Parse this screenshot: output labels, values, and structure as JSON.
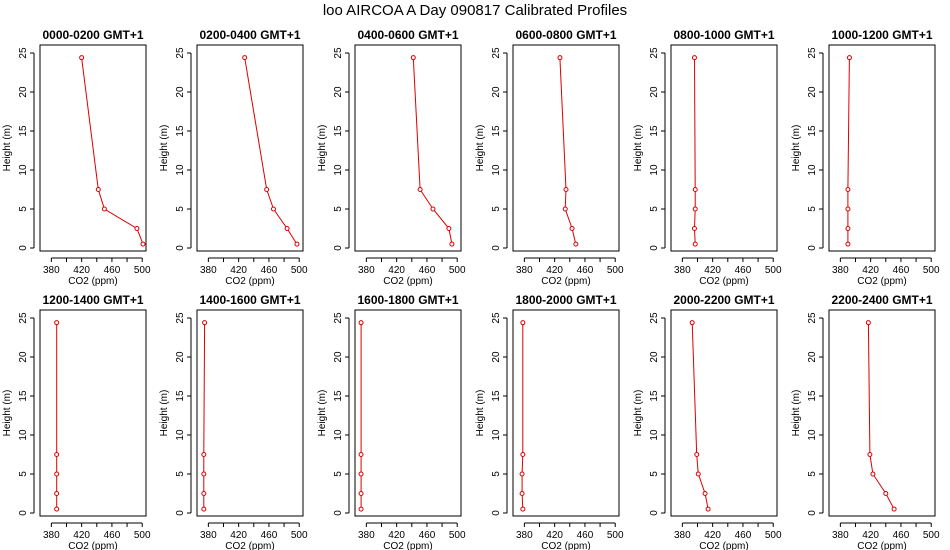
{
  "title": "loo AIRCOA A  Day 090817  Calibrated Profiles",
  "colors": {
    "series": "#dd0000",
    "axis": "#000000",
    "background": "#ffffff"
  },
  "chart_data": [
    {
      "type": "line",
      "title": "0000-0200 GMT+1",
      "xlabel": "CO2 (ppm)",
      "ylabel": "Height (m)",
      "xlim": [
        365,
        505
      ],
      "ylim": [
        0,
        25
      ],
      "xticks": [
        380,
        420,
        460,
        500
      ],
      "xminor": [
        400,
        440,
        480
      ],
      "yticks": [
        0,
        5,
        10,
        15,
        20,
        25
      ],
      "points": [
        {
          "x": 501,
          "y": 0.5
        },
        {
          "x": 493,
          "y": 2.5
        },
        {
          "x": 450,
          "y": 5
        },
        {
          "x": 442,
          "y": 7.5
        },
        {
          "x": 420,
          "y": 24.4
        }
      ]
    },
    {
      "type": "line",
      "title": "0200-0400 GMT+1",
      "xlabel": "CO2 (ppm)",
      "ylabel": "Height (m)",
      "xlim": [
        365,
        505
      ],
      "ylim": [
        0,
        25
      ],
      "xticks": [
        380,
        420,
        460,
        500
      ],
      "xminor": [
        400,
        440,
        480
      ],
      "yticks": [
        0,
        5,
        10,
        15,
        20,
        25
      ],
      "points": [
        {
          "x": 497,
          "y": 0.5
        },
        {
          "x": 484,
          "y": 2.5
        },
        {
          "x": 466,
          "y": 5
        },
        {
          "x": 457,
          "y": 7.5
        },
        {
          "x": 428,
          "y": 24.4
        }
      ]
    },
    {
      "type": "line",
      "title": "0400-0600 GMT+1",
      "xlabel": "CO2 (ppm)",
      "ylabel": "Height (m)",
      "xlim": [
        365,
        505
      ],
      "ylim": [
        0,
        25
      ],
      "xticks": [
        380,
        420,
        460,
        500
      ],
      "xminor": [
        400,
        440,
        480
      ],
      "yticks": [
        0,
        5,
        10,
        15,
        20,
        25
      ],
      "points": [
        {
          "x": 493,
          "y": 0.5
        },
        {
          "x": 489,
          "y": 2.5
        },
        {
          "x": 468,
          "y": 5
        },
        {
          "x": 451,
          "y": 7.5
        },
        {
          "x": 442,
          "y": 24.4
        }
      ]
    },
    {
      "type": "line",
      "title": "0600-0800 GMT+1",
      "xlabel": "CO2 (ppm)",
      "ylabel": "Height (m)",
      "xlim": [
        365,
        505
      ],
      "ylim": [
        0,
        25
      ],
      "xticks": [
        380,
        420,
        460,
        500
      ],
      "xminor": [
        400,
        440,
        480
      ],
      "yticks": [
        0,
        5,
        10,
        15,
        20,
        25
      ],
      "points": [
        {
          "x": 448,
          "y": 0.5
        },
        {
          "x": 443,
          "y": 2.5
        },
        {
          "x": 434,
          "y": 5
        },
        {
          "x": 435,
          "y": 7.5
        },
        {
          "x": 427,
          "y": 24.4
        }
      ]
    },
    {
      "type": "line",
      "title": "0800-1000 GMT+1",
      "xlabel": "CO2 (ppm)",
      "ylabel": "Height (m)",
      "xlim": [
        365,
        505
      ],
      "ylim": [
        0,
        25
      ],
      "xticks": [
        380,
        420,
        460,
        500
      ],
      "xminor": [
        400,
        440,
        480
      ],
      "yticks": [
        0,
        5,
        10,
        15,
        20,
        25
      ],
      "points": [
        {
          "x": 397,
          "y": 0.5
        },
        {
          "x": 396,
          "y": 2.5
        },
        {
          "x": 397,
          "y": 5
        },
        {
          "x": 397,
          "y": 7.5
        },
        {
          "x": 396,
          "y": 24.4
        }
      ]
    },
    {
      "type": "line",
      "title": "1000-1200 GMT+1",
      "xlabel": "CO2 (ppm)",
      "ylabel": "Height (m)",
      "xlim": [
        365,
        505
      ],
      "ylim": [
        0,
        25
      ],
      "xticks": [
        380,
        420,
        460,
        500
      ],
      "xminor": [
        400,
        440,
        480
      ],
      "yticks": [
        0,
        5,
        10,
        15,
        20,
        25
      ],
      "points": [
        {
          "x": 390,
          "y": 0.5
        },
        {
          "x": 390,
          "y": 2.5
        },
        {
          "x": 390,
          "y": 5
        },
        {
          "x": 390,
          "y": 7.5
        },
        {
          "x": 392,
          "y": 24.4
        }
      ]
    },
    {
      "type": "line",
      "title": "1200-1400 GMT+1",
      "xlabel": "CO2 (ppm)",
      "ylabel": "Height (m)",
      "xlim": [
        365,
        505
      ],
      "ylim": [
        0,
        25
      ],
      "xticks": [
        380,
        420,
        460,
        500
      ],
      "xminor": [
        400,
        440,
        480
      ],
      "yticks": [
        0,
        5,
        10,
        15,
        20,
        25
      ],
      "points": [
        {
          "x": 387,
          "y": 0.5
        },
        {
          "x": 387,
          "y": 2.5
        },
        {
          "x": 387,
          "y": 5
        },
        {
          "x": 387,
          "y": 7.5
        },
        {
          "x": 387,
          "y": 24.4
        }
      ]
    },
    {
      "type": "line",
      "title": "1400-1600 GMT+1",
      "xlabel": "CO2 (ppm)",
      "ylabel": "Height (m)",
      "xlim": [
        365,
        505
      ],
      "ylim": [
        0,
        25
      ],
      "xticks": [
        380,
        420,
        460,
        500
      ],
      "xminor": [
        400,
        440,
        480
      ],
      "yticks": [
        0,
        5,
        10,
        15,
        20,
        25
      ],
      "points": [
        {
          "x": 374,
          "y": 0.5
        },
        {
          "x": 374,
          "y": 2.5
        },
        {
          "x": 374,
          "y": 5
        },
        {
          "x": 374,
          "y": 7.5
        },
        {
          "x": 375,
          "y": 24.4
        }
      ]
    },
    {
      "type": "line",
      "title": "1600-1800 GMT+1",
      "xlabel": "CO2 (ppm)",
      "ylabel": "Height (m)",
      "xlim": [
        365,
        505
      ],
      "ylim": [
        0,
        25
      ],
      "xticks": [
        380,
        420,
        460,
        500
      ],
      "xminor": [
        400,
        440,
        480
      ],
      "yticks": [
        0,
        5,
        10,
        15,
        20,
        25
      ],
      "points": [
        {
          "x": 373,
          "y": 0.5
        },
        {
          "x": 373,
          "y": 2.5
        },
        {
          "x": 373,
          "y": 5
        },
        {
          "x": 373,
          "y": 7.5
        },
        {
          "x": 373,
          "y": 24.4
        }
      ]
    },
    {
      "type": "line",
      "title": "1800-2000 GMT+1",
      "xlabel": "CO2 (ppm)",
      "ylabel": "Height (m)",
      "xlim": [
        365,
        505
      ],
      "ylim": [
        0,
        25
      ],
      "xticks": [
        380,
        420,
        460,
        500
      ],
      "xminor": [
        400,
        440,
        480
      ],
      "yticks": [
        0,
        5,
        10,
        15,
        20,
        25
      ],
      "points": [
        {
          "x": 378,
          "y": 0.5
        },
        {
          "x": 377,
          "y": 2.5
        },
        {
          "x": 377,
          "y": 5
        },
        {
          "x": 378,
          "y": 7.5
        },
        {
          "x": 378,
          "y": 24.4
        }
      ]
    },
    {
      "type": "line",
      "title": "2000-2200 GMT+1",
      "xlabel": "CO2 (ppm)",
      "ylabel": "Height (m)",
      "xlim": [
        365,
        505
      ],
      "ylim": [
        0,
        25
      ],
      "xticks": [
        380,
        420,
        460,
        500
      ],
      "xminor": [
        400,
        440,
        480
      ],
      "yticks": [
        0,
        5,
        10,
        15,
        20,
        25
      ],
      "points": [
        {
          "x": 414,
          "y": 0.5
        },
        {
          "x": 410,
          "y": 2.5
        },
        {
          "x": 401,
          "y": 5
        },
        {
          "x": 399,
          "y": 7.5
        },
        {
          "x": 393,
          "y": 24.4
        }
      ]
    },
    {
      "type": "line",
      "title": "2200-2400 GMT+1",
      "xlabel": "CO2 (ppm)",
      "ylabel": "Height (m)",
      "xlim": [
        365,
        505
      ],
      "ylim": [
        0,
        25
      ],
      "xticks": [
        380,
        420,
        460,
        500
      ],
      "xminor": [
        400,
        440,
        480
      ],
      "yticks": [
        0,
        5,
        10,
        15,
        20,
        25
      ],
      "points": [
        {
          "x": 451,
          "y": 0.5
        },
        {
          "x": 440,
          "y": 2.5
        },
        {
          "x": 423,
          "y": 5
        },
        {
          "x": 419,
          "y": 7.5
        },
        {
          "x": 417,
          "y": 24.4
        }
      ]
    }
  ]
}
